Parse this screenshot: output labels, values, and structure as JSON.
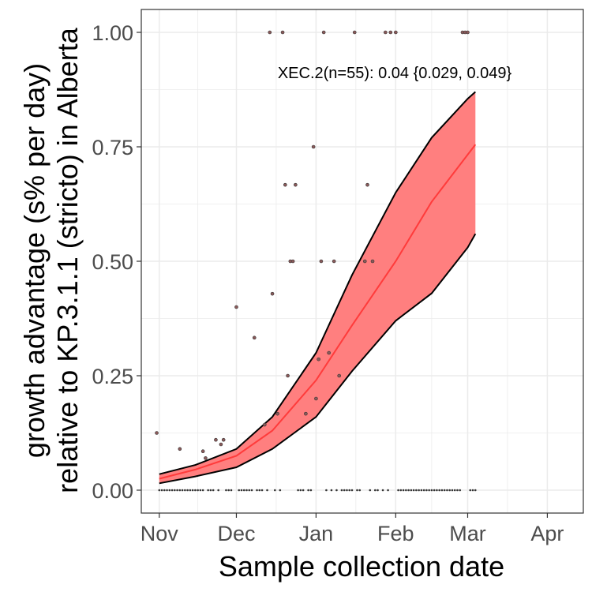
{
  "chart_data": {
    "type": "line",
    "xlabel": "Sample collection date",
    "ylabel_line1": "growth advantage (s% per day)",
    "ylabel_line2": "relative to KP.3.1.1 (stricto) in Alberta",
    "annotation": "XEC.2(n=55): 0.04 {0.029, 0.049}",
    "xlim": [
      "2024-10-25",
      "2025-04-15"
    ],
    "ylim": [
      -0.05,
      1.05
    ],
    "x_ticks": [
      {
        "date": "2024-11-01",
        "label": "Nov"
      },
      {
        "date": "2024-12-01",
        "label": "Dec"
      },
      {
        "date": "2025-01-01",
        "label": "Jan"
      },
      {
        "date": "2025-02-01",
        "label": "Feb"
      },
      {
        "date": "2025-03-01",
        "label": "Mar"
      },
      {
        "date": "2025-04-01",
        "label": "Apr"
      }
    ],
    "y_ticks": [
      {
        "value": 0.0,
        "label": "0.00"
      },
      {
        "value": 0.25,
        "label": "0.25"
      },
      {
        "value": 0.5,
        "label": "0.50"
      },
      {
        "value": 0.75,
        "label": "0.75"
      },
      {
        "value": 1.0,
        "label": "1.00"
      }
    ],
    "grid": true,
    "colors": {
      "ribbon": "#ff7f7f",
      "fit_line": "#ff3b3b",
      "band_edge": "#000000",
      "points": "#8b5a5a",
      "grid": "#ebebeb",
      "panel_border": "#333333"
    },
    "fit": {
      "x": [
        "2024-11-01",
        "2024-11-15",
        "2024-12-01",
        "2024-12-15",
        "2025-01-01",
        "2025-01-15",
        "2025-02-01",
        "2025-02-15",
        "2025-03-04"
      ],
      "y": [
        0.025,
        0.045,
        0.075,
        0.13,
        0.24,
        0.36,
        0.5,
        0.63,
        0.755
      ]
    },
    "band": {
      "x": [
        "2024-11-01",
        "2024-11-15",
        "2024-12-01",
        "2024-12-15",
        "2025-01-01",
        "2025-01-15",
        "2025-02-01",
        "2025-02-15",
        "2025-03-01",
        "2025-03-04"
      ],
      "upper": [
        0.035,
        0.055,
        0.09,
        0.16,
        0.3,
        0.47,
        0.65,
        0.77,
        0.855,
        0.87
      ],
      "lower": [
        0.015,
        0.03,
        0.05,
        0.09,
        0.16,
        0.26,
        0.37,
        0.43,
        0.53,
        0.56
      ]
    },
    "points": [
      {
        "x": "2024-10-31",
        "y": 0.125
      },
      {
        "x": "2024-11-09",
        "y": 0.09
      },
      {
        "x": "2024-11-18",
        "y": 0.085
      },
      {
        "x": "2024-11-19",
        "y": 0.07
      },
      {
        "x": "2024-11-23",
        "y": 0.11
      },
      {
        "x": "2024-11-25",
        "y": 0.1
      },
      {
        "x": "2024-11-26",
        "y": 0.11
      },
      {
        "x": "2024-12-01",
        "y": 0.4
      },
      {
        "x": "2024-12-08",
        "y": 0.333
      },
      {
        "x": "2024-12-12",
        "y": 0.143
      },
      {
        "x": "2024-12-15",
        "y": 0.429
      },
      {
        "x": "2024-12-17",
        "y": 0.167
      },
      {
        "x": "2024-12-19",
        "y": 1.0
      },
      {
        "x": "2024-12-20",
        "y": 0.667
      },
      {
        "x": "2024-12-21",
        "y": 0.25
      },
      {
        "x": "2024-12-22",
        "y": 0.5
      },
      {
        "x": "2024-12-23",
        "y": 0.5
      },
      {
        "x": "2024-12-24",
        "y": 0.667
      },
      {
        "x": "2024-12-28",
        "y": 0.167
      },
      {
        "x": "2024-12-14",
        "y": 1.0
      },
      {
        "x": "2024-12-31",
        "y": 0.75
      },
      {
        "x": "2025-01-01",
        "y": 0.2
      },
      {
        "x": "2025-01-02",
        "y": 0.286
      },
      {
        "x": "2025-01-03",
        "y": 0.5
      },
      {
        "x": "2025-01-04",
        "y": 1.0
      },
      {
        "x": "2025-01-06",
        "y": 0.3
      },
      {
        "x": "2025-01-08",
        "y": 0.5
      },
      {
        "x": "2025-01-10",
        "y": 0.25
      },
      {
        "x": "2025-01-16",
        "y": 1.0
      },
      {
        "x": "2025-01-20",
        "y": 0.5
      },
      {
        "x": "2025-01-21",
        "y": 0.667
      },
      {
        "x": "2025-01-23",
        "y": 0.5
      },
      {
        "x": "2025-01-28",
        "y": 1.0
      },
      {
        "x": "2025-01-30",
        "y": 1.0
      },
      {
        "x": "2025-02-01",
        "y": 1.0
      },
      {
        "x": "2025-02-27",
        "y": 1.0
      },
      {
        "x": "2025-02-28",
        "y": 1.0
      },
      {
        "x": "2025-03-01",
        "y": 1.0
      }
    ],
    "zero_points_x": [
      "2024-11-01",
      "2024-11-02",
      "2024-11-03",
      "2024-11-04",
      "2024-11-05",
      "2024-11-06",
      "2024-11-07",
      "2024-11-08",
      "2024-11-09",
      "2024-11-10",
      "2024-11-11",
      "2024-11-12",
      "2024-11-13",
      "2024-11-14",
      "2024-11-15",
      "2024-11-16",
      "2024-11-17",
      "2024-11-18",
      "2024-11-20",
      "2024-11-21",
      "2024-11-22",
      "2024-11-24",
      "2024-11-27",
      "2024-11-28",
      "2024-11-29",
      "2024-12-02",
      "2024-12-03",
      "2024-12-04",
      "2024-12-05",
      "2024-12-06",
      "2024-12-07",
      "2024-12-09",
      "2024-12-10",
      "2024-12-11",
      "2024-12-13",
      "2024-12-16",
      "2024-12-18",
      "2024-12-25",
      "2024-12-26",
      "2024-12-27",
      "2024-12-29",
      "2024-12-30",
      "2025-01-05",
      "2025-01-07",
      "2025-01-09",
      "2025-01-11",
      "2025-01-12",
      "2025-01-13",
      "2025-01-14",
      "2025-01-15",
      "2025-01-17",
      "2025-01-18",
      "2025-01-22",
      "2025-01-24",
      "2025-01-25",
      "2025-01-27",
      "2025-01-29",
      "2025-02-02",
      "2025-02-03",
      "2025-02-04",
      "2025-02-05",
      "2025-02-06",
      "2025-02-07",
      "2025-02-08",
      "2025-02-09",
      "2025-02-10",
      "2025-02-11",
      "2025-02-12",
      "2025-02-13",
      "2025-02-14",
      "2025-02-15",
      "2025-02-16",
      "2025-02-17",
      "2025-02-18",
      "2025-02-19",
      "2025-02-20",
      "2025-02-21",
      "2025-02-22",
      "2025-02-23",
      "2025-02-24",
      "2025-02-25",
      "2025-02-26",
      "2025-03-02",
      "2025-03-03",
      "2025-03-04"
    ]
  }
}
